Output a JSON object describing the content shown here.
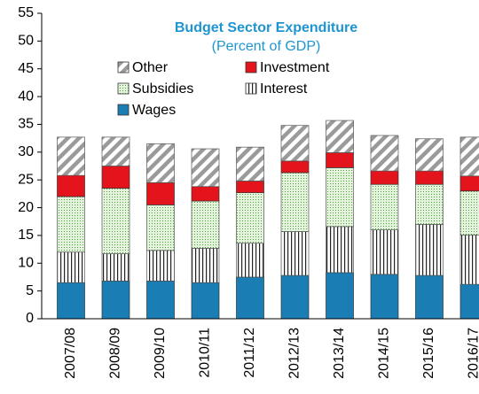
{
  "chart_data": {
    "type": "stacked-bar",
    "title": "Budget Sector Expenditure",
    "subtitle": "(Percent of GDP)",
    "categories": [
      "2007/08",
      "2008/09",
      "2009/10",
      "2010/11",
      "2011/12",
      "2012/13",
      "2013/14",
      "2014/15",
      "2015/16",
      "2016/17"
    ],
    "series": [
      {
        "name": "Wages",
        "color": "#1a7db3",
        "pattern": "solid",
        "values": [
          6.5,
          6.8,
          6.8,
          6.5,
          7.5,
          7.8,
          8.3,
          8.0,
          7.8,
          6.2
        ]
      },
      {
        "name": "Interest",
        "color": "#222222",
        "pattern": "vertical",
        "values": [
          5.5,
          4.9,
          5.5,
          6.2,
          6.1,
          7.9,
          8.3,
          8.0,
          9.2,
          8.9
        ]
      },
      {
        "name": "Subsidies",
        "color": "#4f9e3f",
        "pattern": "dots",
        "values": [
          10.0,
          11.8,
          8.2,
          8.5,
          9.1,
          10.6,
          10.6,
          8.2,
          7.2,
          7.9
        ]
      },
      {
        "name": "Investment",
        "color": "#e3141b",
        "pattern": "solid",
        "values": [
          3.8,
          4.0,
          4.0,
          2.6,
          2.1,
          2.1,
          2.7,
          2.4,
          2.4,
          2.7
        ]
      },
      {
        "name": "Other",
        "color": "#9a9a9a",
        "pattern": "diagonal",
        "values": [
          6.9,
          5.2,
          7.0,
          6.8,
          6.1,
          6.4,
          5.8,
          6.4,
          5.8,
          7.0
        ]
      }
    ],
    "ylim": [
      0,
      55
    ],
    "yticks": [
      0,
      5,
      10,
      15,
      20,
      25,
      30,
      35,
      40,
      45,
      50,
      55
    ],
    "grid": false
  }
}
